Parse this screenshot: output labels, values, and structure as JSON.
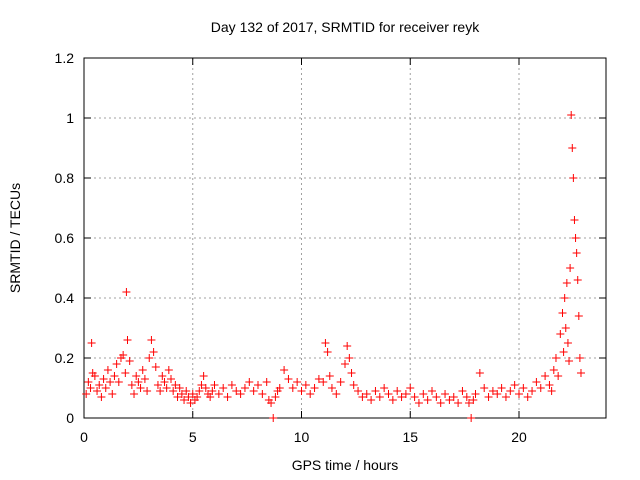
{
  "chart_data": {
    "type": "scatter",
    "title": "Day 132 of 2017, SRMTID for receiver reyk",
    "xlabel": "GPS time / hours",
    "ylabel": "SRMTID / TECUs",
    "xlim": [
      0,
      24
    ],
    "ylim": [
      0,
      1.2
    ],
    "grid": true,
    "marker": "+",
    "color": "#ff0000",
    "x_ticks": [
      0,
      5,
      10,
      15,
      20
    ],
    "x_tick_labels": [
      "0",
      "5",
      "10",
      "15",
      "20"
    ],
    "y_ticks": [
      0,
      0.2,
      0.4,
      0.6,
      0.8,
      1.0,
      1.2
    ],
    "y_tick_labels": [
      "0",
      "0.2",
      "0.4",
      "0.6",
      "0.8",
      "1",
      "1.2"
    ],
    "series": [
      {
        "name": "reyk",
        "points": [
          [
            0.1,
            0.08
          ],
          [
            0.2,
            0.12
          ],
          [
            0.3,
            0.1
          ],
          [
            0.35,
            0.25
          ],
          [
            0.4,
            0.15
          ],
          [
            0.5,
            0.14
          ],
          [
            0.6,
            0.09
          ],
          [
            0.7,
            0.11
          ],
          [
            0.8,
            0.07
          ],
          [
            0.9,
            0.13
          ],
          [
            1.0,
            0.1
          ],
          [
            1.1,
            0.16
          ],
          [
            1.2,
            0.12
          ],
          [
            1.3,
            0.08
          ],
          [
            1.4,
            0.14
          ],
          [
            1.5,
            0.18
          ],
          [
            1.6,
            0.12
          ],
          [
            1.7,
            0.2
          ],
          [
            1.8,
            0.21
          ],
          [
            1.9,
            0.15
          ],
          [
            1.95,
            0.42
          ],
          [
            2.0,
            0.26
          ],
          [
            2.1,
            0.19
          ],
          [
            2.2,
            0.11
          ],
          [
            2.3,
            0.08
          ],
          [
            2.4,
            0.14
          ],
          [
            2.5,
            0.12
          ],
          [
            2.6,
            0.1
          ],
          [
            2.7,
            0.16
          ],
          [
            2.8,
            0.13
          ],
          [
            2.9,
            0.09
          ],
          [
            3.0,
            0.2
          ],
          [
            3.1,
            0.26
          ],
          [
            3.2,
            0.22
          ],
          [
            3.3,
            0.17
          ],
          [
            3.4,
            0.11
          ],
          [
            3.5,
            0.09
          ],
          [
            3.6,
            0.14
          ],
          [
            3.7,
            0.12
          ],
          [
            3.8,
            0.1
          ],
          [
            3.9,
            0.16
          ],
          [
            4.0,
            0.13
          ],
          [
            4.1,
            0.09
          ],
          [
            4.2,
            0.11
          ],
          [
            4.3,
            0.07
          ],
          [
            4.4,
            0.1
          ],
          [
            4.5,
            0.08
          ],
          [
            4.6,
            0.06
          ],
          [
            4.7,
            0.09
          ],
          [
            4.8,
            0.07
          ],
          [
            4.9,
            0.05
          ],
          [
            5.0,
            0.08
          ],
          [
            5.1,
            0.06
          ],
          [
            5.2,
            0.07
          ],
          [
            5.3,
            0.09
          ],
          [
            5.4,
            0.11
          ],
          [
            5.5,
            0.14
          ],
          [
            5.6,
            0.1
          ],
          [
            5.7,
            0.08
          ],
          [
            5.8,
            0.07
          ],
          [
            5.9,
            0.09
          ],
          [
            6.0,
            0.11
          ],
          [
            6.2,
            0.08
          ],
          [
            6.4,
            0.1
          ],
          [
            6.6,
            0.07
          ],
          [
            6.8,
            0.11
          ],
          [
            7.0,
            0.09
          ],
          [
            7.2,
            0.08
          ],
          [
            7.4,
            0.1
          ],
          [
            7.6,
            0.12
          ],
          [
            7.8,
            0.09
          ],
          [
            8.0,
            0.11
          ],
          [
            8.2,
            0.08
          ],
          [
            8.4,
            0.12
          ],
          [
            8.5,
            0.06
          ],
          [
            8.6,
            0.05
          ],
          [
            8.7,
            0.0
          ],
          [
            8.8,
            0.07
          ],
          [
            8.9,
            0.09
          ],
          [
            9.0,
            0.1
          ],
          [
            9.2,
            0.16
          ],
          [
            9.4,
            0.13
          ],
          [
            9.6,
            0.1
          ],
          [
            9.8,
            0.12
          ],
          [
            10.0,
            0.09
          ],
          [
            10.2,
            0.11
          ],
          [
            10.4,
            0.08
          ],
          [
            10.6,
            0.1
          ],
          [
            10.8,
            0.13
          ],
          [
            11.0,
            0.12
          ],
          [
            11.1,
            0.25
          ],
          [
            11.2,
            0.22
          ],
          [
            11.3,
            0.14
          ],
          [
            11.4,
            0.1
          ],
          [
            11.6,
            0.08
          ],
          [
            11.8,
            0.12
          ],
          [
            12.0,
            0.18
          ],
          [
            12.1,
            0.24
          ],
          [
            12.2,
            0.2
          ],
          [
            12.3,
            0.15
          ],
          [
            12.4,
            0.11
          ],
          [
            12.6,
            0.09
          ],
          [
            12.8,
            0.07
          ],
          [
            13.0,
            0.08
          ],
          [
            13.2,
            0.06
          ],
          [
            13.4,
            0.09
          ],
          [
            13.6,
            0.07
          ],
          [
            13.8,
            0.1
          ],
          [
            14.0,
            0.08
          ],
          [
            14.2,
            0.06
          ],
          [
            14.4,
            0.09
          ],
          [
            14.6,
            0.07
          ],
          [
            14.8,
            0.08
          ],
          [
            15.0,
            0.1
          ],
          [
            15.2,
            0.07
          ],
          [
            15.4,
            0.05
          ],
          [
            15.6,
            0.08
          ],
          [
            15.8,
            0.06
          ],
          [
            16.0,
            0.09
          ],
          [
            16.2,
            0.07
          ],
          [
            16.4,
            0.05
          ],
          [
            16.6,
            0.08
          ],
          [
            16.8,
            0.06
          ],
          [
            17.0,
            0.07
          ],
          [
            17.2,
            0.05
          ],
          [
            17.4,
            0.09
          ],
          [
            17.6,
            0.07
          ],
          [
            17.7,
            0.05
          ],
          [
            17.8,
            0.0
          ],
          [
            17.9,
            0.06
          ],
          [
            18.0,
            0.08
          ],
          [
            18.2,
            0.15
          ],
          [
            18.4,
            0.1
          ],
          [
            18.6,
            0.07
          ],
          [
            18.8,
            0.09
          ],
          [
            19.0,
            0.08
          ],
          [
            19.2,
            0.1
          ],
          [
            19.4,
            0.07
          ],
          [
            19.6,
            0.09
          ],
          [
            19.8,
            0.11
          ],
          [
            20.0,
            0.08
          ],
          [
            20.2,
            0.1
          ],
          [
            20.4,
            0.07
          ],
          [
            20.6,
            0.09
          ],
          [
            20.8,
            0.12
          ],
          [
            21.0,
            0.1
          ],
          [
            21.2,
            0.14
          ],
          [
            21.4,
            0.11
          ],
          [
            21.5,
            0.09
          ],
          [
            21.6,
            0.16
          ],
          [
            21.7,
            0.2
          ],
          [
            21.8,
            0.14
          ],
          [
            21.9,
            0.28
          ],
          [
            22.0,
            0.35
          ],
          [
            22.05,
            0.22
          ],
          [
            22.1,
            0.4
          ],
          [
            22.15,
            0.3
          ],
          [
            22.2,
            0.45
          ],
          [
            22.25,
            0.25
          ],
          [
            22.3,
            0.19
          ],
          [
            22.35,
            0.5
          ],
          [
            22.4,
            1.01
          ],
          [
            22.45,
            0.9
          ],
          [
            22.5,
            0.8
          ],
          [
            22.55,
            0.66
          ],
          [
            22.6,
            0.6
          ],
          [
            22.65,
            0.55
          ],
          [
            22.7,
            0.46
          ],
          [
            22.75,
            0.34
          ],
          [
            22.8,
            0.2
          ],
          [
            22.85,
            0.15
          ]
        ]
      }
    ]
  }
}
